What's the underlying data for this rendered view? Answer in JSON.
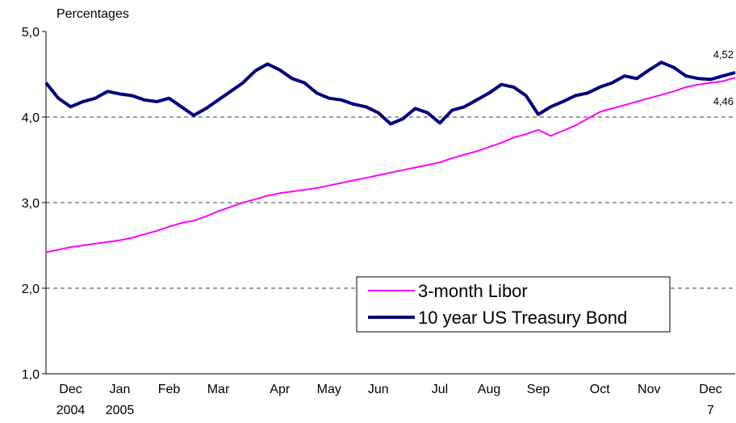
{
  "chart_data": {
    "type": "line",
    "y_axis_label": "Percentages",
    "categories": [
      null,
      null,
      "Dec\n2004",
      null,
      null,
      null,
      "Jan\n2005",
      null,
      null,
      null,
      "Feb",
      null,
      null,
      null,
      "Mar",
      null,
      null,
      null,
      null,
      "Apr",
      null,
      null,
      null,
      "May",
      null,
      null,
      null,
      "Jun",
      null,
      null,
      null,
      null,
      "Jul",
      null,
      null,
      null,
      "Aug",
      null,
      null,
      null,
      "Sep",
      null,
      null,
      null,
      null,
      "Oct",
      null,
      null,
      null,
      "Nov",
      null,
      null,
      null,
      null,
      "Dec\n7",
      null,
      null
    ],
    "series": [
      {
        "name": "3-month Libor",
        "color": "#ff00ff",
        "width": 2,
        "values": [
          2.42,
          2.45,
          2.48,
          2.5,
          2.52,
          2.54,
          2.56,
          2.59,
          2.63,
          2.67,
          2.72,
          2.76,
          2.79,
          2.84,
          2.9,
          2.95,
          3.0,
          3.04,
          3.08,
          3.11,
          3.13,
          3.15,
          3.17,
          3.2,
          3.23,
          3.26,
          3.29,
          3.32,
          3.35,
          3.38,
          3.41,
          3.44,
          3.47,
          3.52,
          3.56,
          3.6,
          3.65,
          3.7,
          3.76,
          3.8,
          3.85,
          3.78,
          3.84,
          3.9,
          3.98,
          4.06,
          4.1,
          4.14,
          4.18,
          4.22,
          4.26,
          4.3,
          4.35,
          4.38,
          4.4,
          4.42,
          4.46
        ],
        "value_labels": [
          null,
          null,
          null,
          null,
          null,
          null,
          null,
          null,
          null,
          null,
          null,
          null,
          null,
          null,
          null,
          null,
          null,
          null,
          null,
          null,
          null,
          null,
          null,
          null,
          null,
          null,
          null,
          null,
          null,
          null,
          null,
          null,
          null,
          null,
          null,
          null,
          null,
          null,
          null,
          null,
          null,
          null,
          null,
          null,
          null,
          null,
          null,
          null,
          null,
          null,
          null,
          null,
          null,
          null,
          null,
          null,
          "4,46"
        ]
      },
      {
        "name": "10 year US Treasury Bond",
        "color": "#000080",
        "width": 4,
        "values": [
          4.4,
          4.22,
          4.12,
          4.18,
          4.22,
          4.3,
          4.27,
          4.25,
          4.2,
          4.18,
          4.22,
          4.12,
          4.02,
          4.1,
          4.2,
          4.3,
          4.4,
          4.54,
          4.62,
          4.55,
          4.45,
          4.4,
          4.28,
          4.22,
          4.2,
          4.15,
          4.12,
          4.05,
          3.92,
          3.98,
          4.1,
          4.05,
          3.93,
          4.08,
          4.12,
          4.2,
          4.28,
          4.38,
          4.35,
          4.25,
          4.03,
          4.12,
          4.18,
          4.25,
          4.28,
          4.35,
          4.4,
          4.48,
          4.45,
          4.55,
          4.64,
          4.58,
          4.48,
          4.45,
          4.44,
          4.48,
          4.52
        ],
        "value_labels": [
          null,
          null,
          null,
          null,
          null,
          null,
          null,
          null,
          null,
          null,
          null,
          null,
          null,
          null,
          null,
          null,
          null,
          null,
          null,
          null,
          null,
          null,
          null,
          null,
          null,
          null,
          null,
          null,
          null,
          null,
          null,
          null,
          null,
          null,
          null,
          null,
          null,
          null,
          null,
          null,
          null,
          null,
          null,
          null,
          null,
          null,
          null,
          null,
          null,
          null,
          null,
          null,
          null,
          null,
          null,
          null,
          "4,52"
        ]
      }
    ],
    "ylim": [
      1,
      5
    ],
    "yticks": [
      {
        "value": 1,
        "label": "1,0"
      },
      {
        "value": 2,
        "label": "2,0"
      },
      {
        "value": 3,
        "label": "3,0"
      },
      {
        "value": 4,
        "label": "4,0"
      },
      {
        "value": 5,
        "label": "5,0"
      }
    ],
    "grid": true,
    "legend": "lower right"
  }
}
